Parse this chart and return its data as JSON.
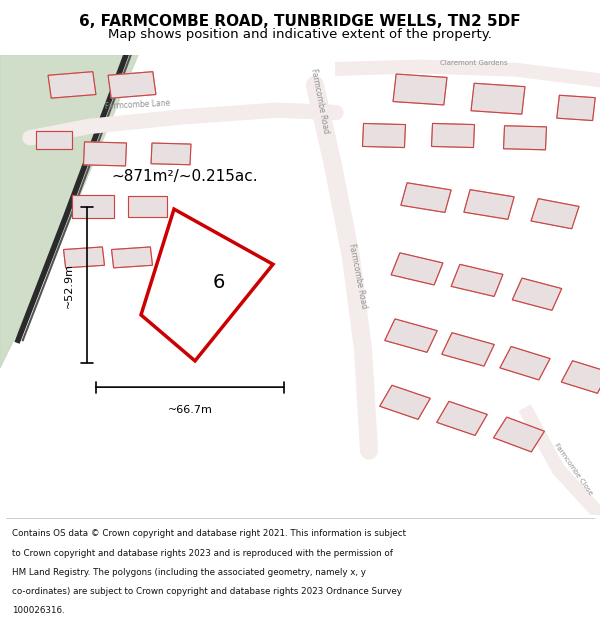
{
  "title_line1": "6, FARMCOMBE ROAD, TUNBRIDGE WELLS, TN2 5DF",
  "title_line2": "Map shows position and indicative extent of the property.",
  "area_label": "~871m²/~0.215ac.",
  "property_number": "6",
  "dim_width": "~66.7m",
  "dim_height": "~52.9m",
  "footer_lines": [
    "Contains OS data © Crown copyright and database right 2021. This information is subject",
    "to Crown copyright and database rights 2023 and is reproduced with the permission of",
    "HM Land Registry. The polygons (including the associated geometry, namely x, y",
    "co-ordinates) are subject to Crown copyright and database rights 2023 Ordnance Survey",
    "100026316."
  ],
  "map_bg": "#f0eded",
  "highlight_color": "#cc0000",
  "green_color": "#c8d8c0",
  "road_line_color": "#d4b0b0",
  "figsize": [
    6.0,
    6.25
  ],
  "dpi": 100
}
